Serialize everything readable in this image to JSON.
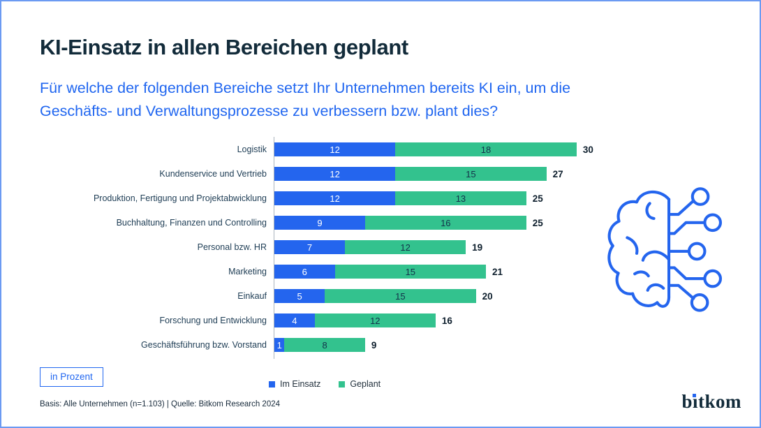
{
  "frame": {
    "background": "#ffffff",
    "border_color": "#6b9af2"
  },
  "header": {
    "title": "KI-Einsatz in allen Bereichen geplant",
    "title_color": "#122b3a",
    "subtitle_color": "#2066f0",
    "subtitle_lines": [
      "Für welche der folgenden Bereiche setzt Ihr Unternehmen bereits KI ein, um die",
      "Geschäfts- und Verwaltungsprozesse zu verbessern bzw. plant dies?"
    ]
  },
  "chart_data": {
    "type": "bar",
    "orientation": "horizontal",
    "stacked": true,
    "unit": "Prozent",
    "xlim": [
      0,
      30
    ],
    "grid": false,
    "legend_position": "bottom",
    "value_labels": "inside-segments",
    "total_labels": "right-of-bar",
    "categories": [
      "Logistik",
      "Kundenservice und Vertrieb",
      "Produktion, Fertigung und Projektabwicklung",
      "Buchhaltung, Finanzen und Controlling",
      "Personal bzw. HR",
      "Marketing",
      "Einkauf",
      "Forschung und Entwicklung",
      "Geschäftsführung bzw. Vorstand"
    ],
    "series": [
      {
        "name": "Im Einsatz",
        "color": "#2465ee",
        "values": [
          12,
          12,
          12,
          9,
          7,
          6,
          5,
          4,
          1
        ]
      },
      {
        "name": "Geplant",
        "color": "#33c28e",
        "values": [
          18,
          15,
          13,
          16,
          12,
          15,
          15,
          12,
          8
        ]
      }
    ],
    "totals": [
      30,
      27,
      25,
      25,
      19,
      21,
      20,
      16,
      9
    ]
  },
  "footer": {
    "unit_badge": "in Prozent",
    "source": "Basis: Alle Unternehmen (n=1.103) | Quelle: Bitkom Research 2024"
  },
  "logo": {
    "text": "bitkom",
    "b": "b",
    "rest": "ıtkom",
    "color": "#122b3a",
    "dot_color": "#2465ee"
  },
  "icons": {
    "brain_circuit_color": "#2465ee"
  }
}
